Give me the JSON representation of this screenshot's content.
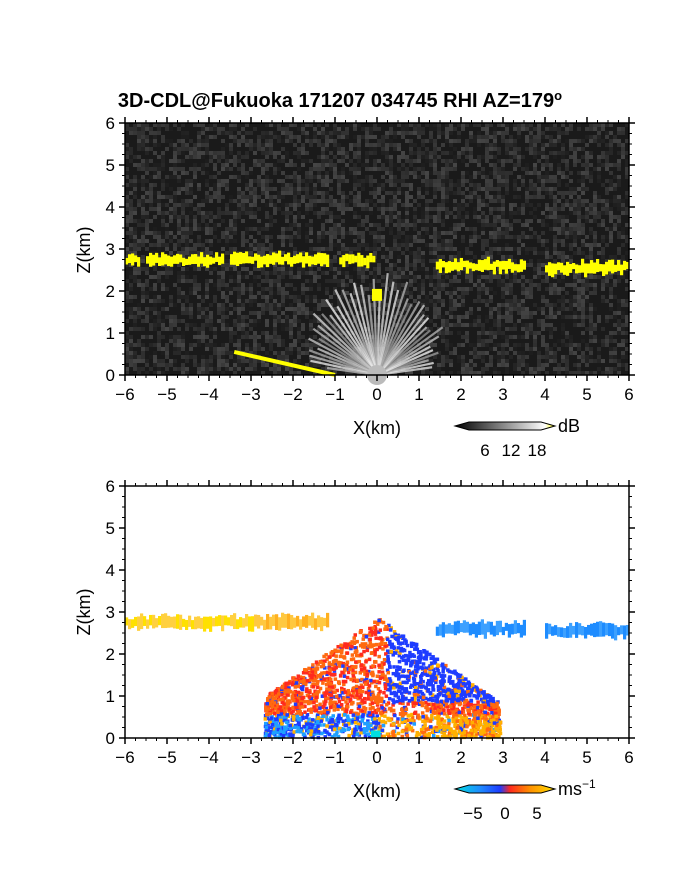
{
  "title": "3D-CDL@Fukuoka 171207 034745 RHI AZ=179",
  "title_sup": "o",
  "colors": {
    "background_top": "#1a1a1a",
    "cloud_layer": "#ffff00",
    "neg_velocity": "#1e3cff",
    "pos_velocity": "#ff3c1e",
    "cloud_velocity": "#ffe000",
    "cyan": "#00e0e0"
  },
  "chart_data": [
    {
      "type": "heatmap",
      "name": "reflectivity",
      "xlabel": "X(km)",
      "ylabel": "Z(km)",
      "xlim": [
        -6,
        6
      ],
      "ylim": [
        0,
        6
      ],
      "xticks": [
        -6,
        -5,
        -4,
        -3,
        -2,
        -1,
        0,
        1,
        2,
        3,
        4,
        5,
        6
      ],
      "yticks": [
        0,
        1,
        2,
        3,
        4,
        5,
        6
      ],
      "colorbar": {
        "unit": "dB",
        "ticks": [
          "6",
          "12",
          "18"
        ],
        "range": [
          0,
          20
        ]
      },
      "features": {
        "cloud_layer_km": [
          {
            "x0": -6.0,
            "x1": -5.7,
            "z": 2.75
          },
          {
            "x0": -5.5,
            "x1": -3.7,
            "z": 2.75
          },
          {
            "x0": -3.5,
            "x1": -1.2,
            "z": 2.75
          },
          {
            "x0": -0.9,
            "x1": -0.1,
            "z": 2.75
          },
          {
            "x0": 1.4,
            "x1": 3.5,
            "z": 2.6
          },
          {
            "x0": 4.0,
            "x1": 6.0,
            "z": 2.55
          }
        ],
        "rays_origin_km": [
          0,
          0
        ],
        "rays_max_range_km": 2.2,
        "ground_echo_km": {
          "x0": -3.4,
          "x1": -1.0,
          "z0": 0.55,
          "z1": 0.0
        }
      }
    },
    {
      "type": "heatmap",
      "name": "doppler_velocity",
      "xlabel": "X(km)",
      "ylabel": "Z(km)",
      "xlim": [
        -6,
        6
      ],
      "ylim": [
        0,
        6
      ],
      "xticks": [
        -6,
        -5,
        -4,
        -3,
        -2,
        -1,
        0,
        1,
        2,
        3,
        4,
        5,
        6
      ],
      "yticks": [
        0,
        1,
        2,
        3,
        4,
        5,
        6
      ],
      "colorbar": {
        "unit": "ms",
        "unit_sup": "−1",
        "ticks": [
          "−5",
          "0",
          "5"
        ],
        "range": [
          -7,
          7
        ]
      },
      "features": {
        "cloud_layer_km": [
          {
            "x0": -6.0,
            "x1": -1.2,
            "z": 2.75,
            "velocity": 6
          },
          {
            "x0": 1.4,
            "x1": 3.5,
            "z": 2.6,
            "velocity": -3
          },
          {
            "x0": 4.0,
            "x1": 6.0,
            "z": 2.55,
            "velocity": -3
          }
        ]
      }
    }
  ]
}
